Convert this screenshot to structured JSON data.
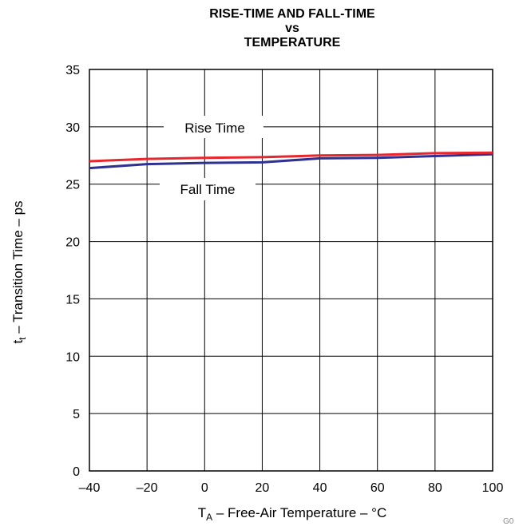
{
  "chart_data": {
    "type": "line",
    "title_lines": [
      "RISE-TIME AND FALL-TIME",
      "vs",
      "TEMPERATURE"
    ],
    "xlabel": {
      "prefix": "T",
      "sub": "A",
      "rest": " – Free-Air Temperature – °C"
    },
    "ylabel": {
      "prefix": "t",
      "sub": "t",
      "rest": " – Transition Time – ps"
    },
    "xlim": [
      -40,
      100
    ],
    "ylim": [
      0,
      35
    ],
    "xticks": [
      -40,
      -20,
      0,
      20,
      40,
      60,
      80,
      100
    ],
    "yticks": [
      0,
      5,
      10,
      15,
      20,
      25,
      30,
      35
    ],
    "xtick_labels": [
      "–40",
      "–20",
      "0",
      "20",
      "40",
      "60",
      "80",
      "100"
    ],
    "ytick_labels": [
      "0",
      "5",
      "10",
      "15",
      "20",
      "25",
      "30",
      "35"
    ],
    "grid": true,
    "series": [
      {
        "name": "Rise Time",
        "color": "#e8262e",
        "x": [
          -40,
          -20,
          0,
          20,
          40,
          60,
          80,
          100
        ],
        "y": [
          27.0,
          27.2,
          27.3,
          27.35,
          27.5,
          27.55,
          27.7,
          27.75
        ]
      },
      {
        "name": "Fall Time",
        "color": "#2e3192",
        "x": [
          -40,
          -20,
          0,
          20,
          40,
          60,
          80,
          100
        ],
        "y": [
          26.4,
          26.75,
          26.85,
          26.9,
          27.25,
          27.3,
          27.45,
          27.6
        ]
      }
    ],
    "figure_id": "G0"
  }
}
